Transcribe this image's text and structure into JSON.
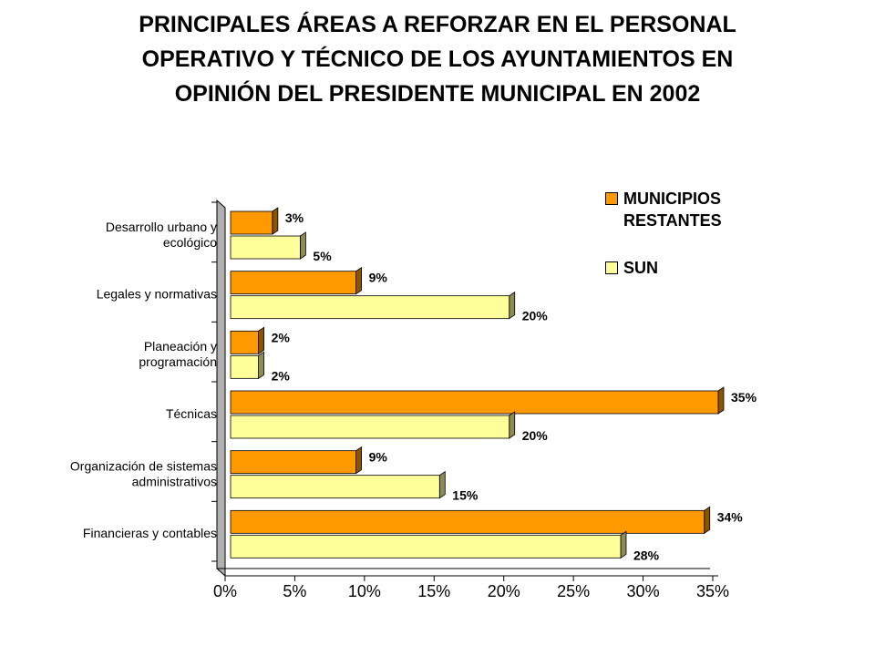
{
  "title_lines": [
    "PRINCIPALES ÁREAS A REFORZAR EN EL PERSONAL",
    "OPERATIVO Y TÉCNICO DE LOS AYUNTAMIENTOS EN",
    "OPINIÓN DEL PRESIDENTE MUNICIPAL EN 2002"
  ],
  "chart_data": {
    "type": "bar",
    "orientation": "horizontal",
    "title": "PRINCIPALES ÁREAS A REFORZAR EN EL PERSONAL OPERATIVO Y TÉCNICO DE LOS AYUNTAMIENTOS EN OPINIÓN DEL PRESIDENTE MUNICIPAL EN 2002",
    "categories": [
      "Desarrollo urbano y\necológico",
      "Legales y normativas",
      "Planeación y\nprogramación",
      "Técnicas",
      "Organización de sistemas\nadministrativos",
      "Financieras y contables"
    ],
    "series": [
      {
        "name": "MUNICIPIOS\nRESTANTES",
        "color": "#FF9900",
        "values": [
          3,
          9,
          2,
          35,
          9,
          34
        ]
      },
      {
        "name": "SUN",
        "color": "#FFFF99",
        "values": [
          5,
          20,
          2,
          20,
          15,
          28
        ]
      }
    ],
    "xlim": [
      0,
      35
    ],
    "xticks": [
      "0%",
      "5%",
      "10%",
      "15%",
      "20%",
      "25%",
      "30%",
      "35%"
    ],
    "xtick_values": [
      0,
      5,
      10,
      15,
      20,
      25,
      30,
      35
    ],
    "value_suffix": "%",
    "legend_position": "top-right",
    "grid": false,
    "bar_3d": true
  }
}
